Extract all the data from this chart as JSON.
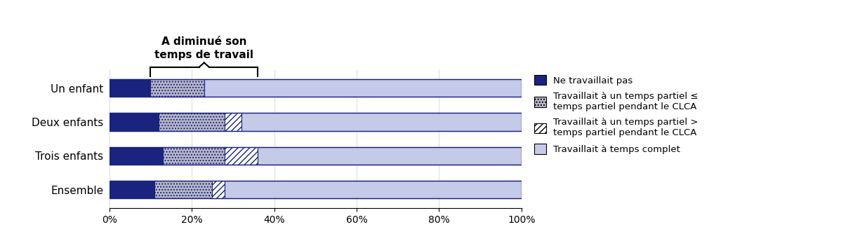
{
  "categories": [
    "Ensemble",
    "Trois enfants",
    "Deux enfants",
    "Un enfant"
  ],
  "ne_travaillait_pas": [
    11,
    13,
    12,
    10
  ],
  "temps_partiel_le": [
    14,
    15,
    16,
    13
  ],
  "temps_partiel_gt": [
    3,
    8,
    4,
    0
  ],
  "temps_complet": [
    72,
    64,
    68,
    77
  ],
  "color_dark_blue": "#1a237e",
  "color_dotted_bg": "#b8b8c8",
  "color_light_blue": "#c5cae9",
  "bar_edgecolor": "#1a237e",
  "annotation_line1": "A diminué son",
  "annotation_line2": "temps de travail",
  "bracket_xstart": 10,
  "bracket_xend": 36,
  "legend_label_1": "Ne travaillait pas",
  "legend_label_2": "Travaillait à un temps partiel ≤\ntemps partiel pendant le CLCA",
  "legend_label_3": "Travaillait à un temps partiel >\ntemps partiel pendant le CLCA",
  "legend_label_4": "Travaillait à temps complet",
  "background_color": "#ffffff",
  "bar_height": 0.52
}
